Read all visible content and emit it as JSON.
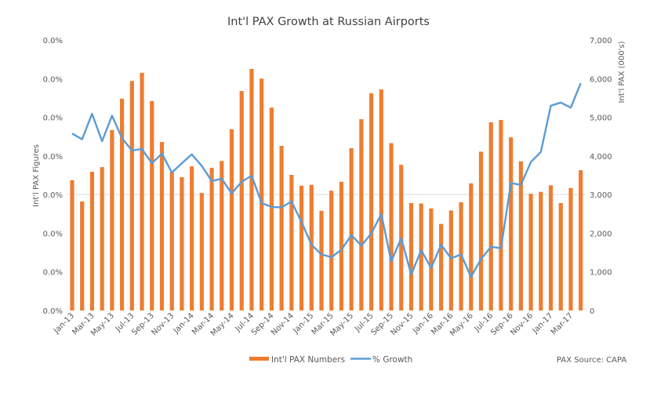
{
  "chart_data": {
    "type": "bar+line",
    "title": "Int'l PAX Growth at Russian Airports",
    "ylabel_left": "Int'l PAX Figures",
    "ylabel_right": "Int'l PAX (000's)",
    "left_tick_labels": [
      "0.0%",
      "0.0%",
      "0.0%",
      "0.0%",
      "0.0%",
      "0.0%",
      "0.0%",
      "0.0%"
    ],
    "right_tick_labels": [
      "0",
      "1,000",
      "2,000",
      "3,000",
      "4,000",
      "5,000",
      "6,000",
      "7,000"
    ],
    "ylim_right": [
      0,
      7000
    ],
    "grid": "horizontal",
    "x_tick_labels": [
      "Jan-13",
      "Mar-13",
      "May-13",
      "Jul-13",
      "Sep-13",
      "Nov-13",
      "Jan-14",
      "Mar-14",
      "May-14",
      "Jul-14",
      "Sep-14",
      "Nov-14",
      "Jan-15",
      "Mar-15",
      "May-15",
      "Jul-15",
      "Sep-15",
      "Nov-15",
      "Jan-16",
      "Mar-16",
      "May-16",
      "Jul-16",
      "Sep-16",
      "Nov-16",
      "Jan-17",
      "Mar-17"
    ],
    "series": [
      {
        "name": "Int'l PAX Numbers",
        "type": "bar",
        "axis": "right",
        "color": "#ED7D31",
        "values": [
          3370,
          2820,
          3590,
          3710,
          4670,
          5480,
          5940,
          6150,
          5420,
          4360,
          3590,
          3450,
          3730,
          3040,
          3690,
          3870,
          4690,
          5680,
          6250,
          6000,
          5250,
          4260,
          3510,
          3230,
          3250,
          2580,
          3100,
          3330,
          4200,
          4950,
          5620,
          5720,
          4330,
          3770,
          2780,
          2770,
          2640,
          2240,
          2590,
          2800,
          3290,
          4110,
          4870,
          4930,
          4480,
          3860,
          3020,
          3070,
          3240,
          2780,
          3170,
          3630
        ]
      },
      {
        "name": "% Growth",
        "type": "line",
        "axis": "left",
        "color": "#5B9BD5",
        "values": [
          4580,
          4430,
          5090,
          4380,
          5040,
          4460,
          4140,
          4180,
          3810,
          4060,
          3570,
          3810,
          4040,
          3740,
          3350,
          3410,
          3030,
          3330,
          3490,
          2780,
          2680,
          2670,
          2820,
          2290,
          1700,
          1450,
          1380,
          1570,
          1950,
          1680,
          1990,
          2500,
          1270,
          1870,
          930,
          1560,
          1100,
          1700,
          1350,
          1450,
          870,
          1330,
          1650,
          1610,
          3300,
          3250,
          3840,
          4100,
          5300,
          5380,
          5250,
          5880
        ]
      }
    ],
    "legend": "bottom",
    "source_note": "PAX Source: CAPA"
  }
}
